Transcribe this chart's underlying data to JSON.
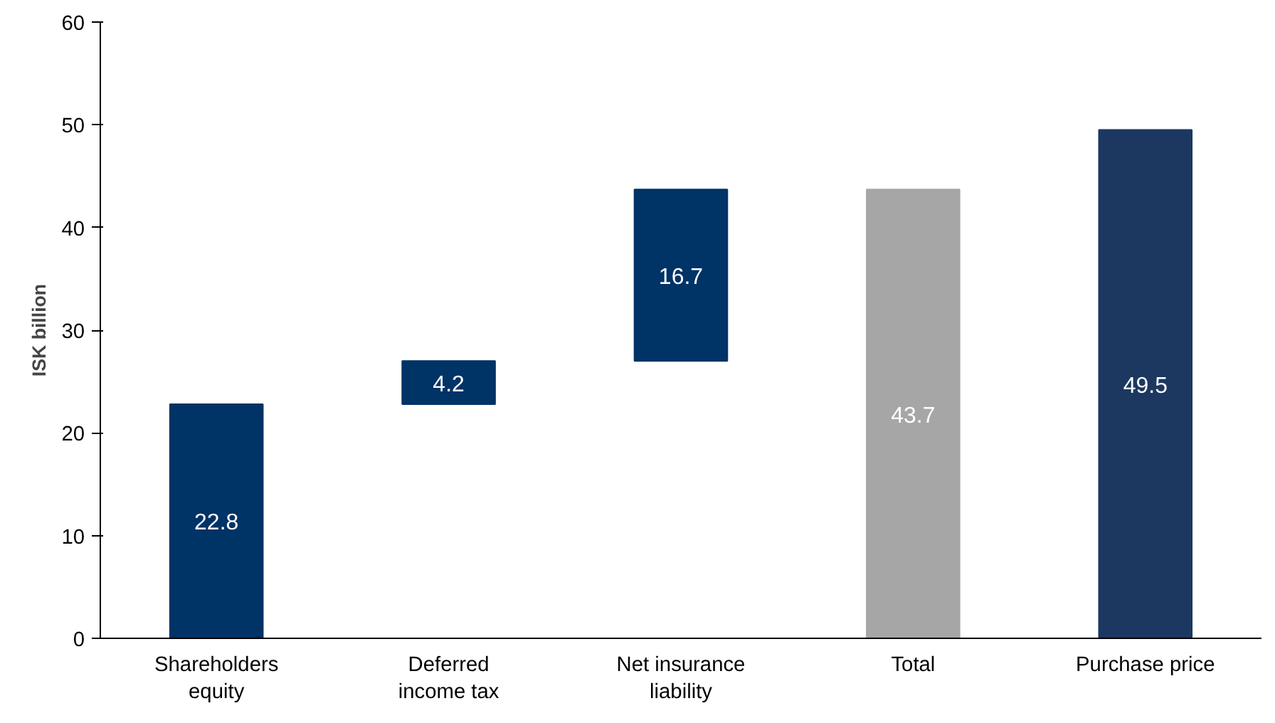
{
  "chart_data": {
    "type": "bar",
    "ylabel": "ISK billion",
    "categories": [
      "Shareholders equity",
      "Deferred income tax",
      "Net insurance liability",
      "Total",
      "Purchase price"
    ],
    "values": [
      22.8,
      4.2,
      16.7,
      43.7,
      49.5
    ],
    "base": [
      0,
      22.8,
      27.0,
      0,
      0
    ],
    "colors": [
      "#003366",
      "#003366",
      "#003366",
      "#a6a6a6",
      "#1c3860"
    ],
    "ylim": [
      0,
      60
    ],
    "yticks": [
      0,
      10,
      20,
      30,
      40,
      50,
      60
    ],
    "data_labels": true,
    "grid": false
  }
}
